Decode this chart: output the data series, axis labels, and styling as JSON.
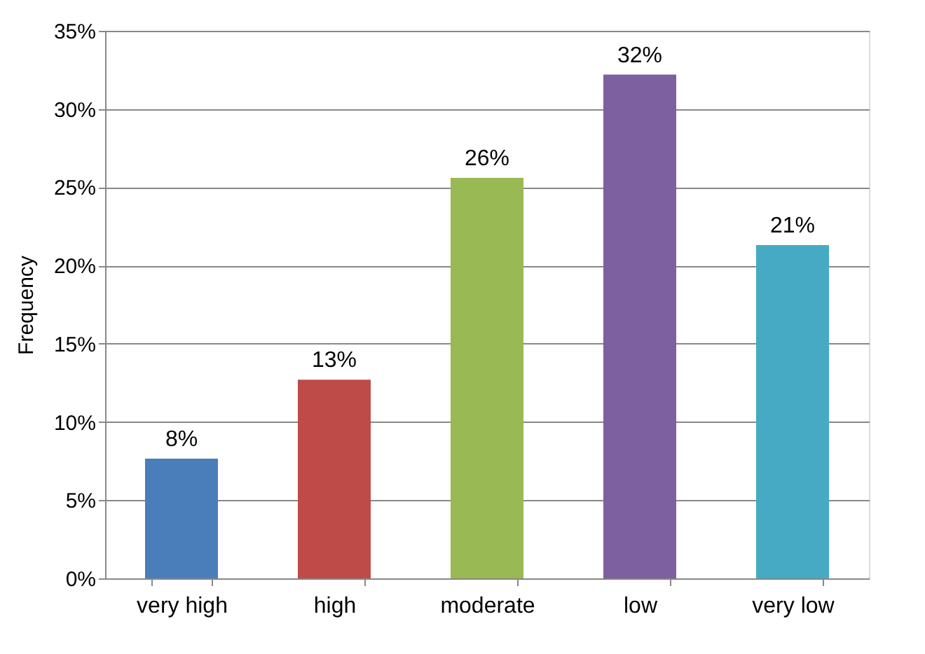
{
  "chart_data": {
    "type": "bar",
    "ylabel": "Frequency",
    "categories": [
      "very high",
      "high",
      "moderate",
      "low",
      "very low"
    ],
    "values": [
      7.65,
      12.7,
      25.6,
      32.2,
      21.3
    ],
    "value_labels": [
      "8%",
      "13%",
      "26%",
      "32%",
      "21%"
    ],
    "colors": [
      "#4a7ebb",
      "#be4b48",
      "#98b954",
      "#7d60a0",
      "#46aac5"
    ],
    "ylim": [
      0,
      35
    ],
    "yticks": [
      {
        "value": 0,
        "label": "0%"
      },
      {
        "value": 5,
        "label": "5%"
      },
      {
        "value": 10,
        "label": "10%"
      },
      {
        "value": 15,
        "label": "15%"
      },
      {
        "value": 20,
        "label": "20%"
      },
      {
        "value": 25,
        "label": "25%"
      },
      {
        "value": 30,
        "label": "30%"
      },
      {
        "value": 35,
        "label": "35%"
      }
    ],
    "grid": "y"
  }
}
